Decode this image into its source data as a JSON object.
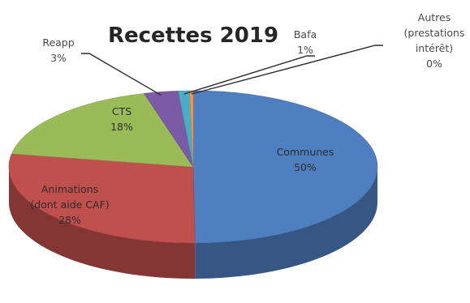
{
  "chart_data": {
    "type": "pie",
    "title": "Recettes 2019",
    "three_d": true,
    "legend": "none",
    "slices": [
      {
        "key": "communes",
        "label_lines": [
          "Communes"
        ],
        "value": 50,
        "pct_label": "50%",
        "color": "#4f7fc0"
      },
      {
        "key": "animations",
        "label_lines": [
          "Animations",
          "(dont aide CAF)"
        ],
        "value": 28,
        "pct_label": "28%",
        "color": "#c0504d"
      },
      {
        "key": "cts",
        "label_lines": [
          "CTS"
        ],
        "value": 18,
        "pct_label": "18%",
        "color": "#9bbb59"
      },
      {
        "key": "reapp",
        "label_lines": [
          "Reapp"
        ],
        "value": 3,
        "pct_label": "3%",
        "color": "#7b5ba6"
      },
      {
        "key": "bafa",
        "label_lines": [
          "Bafa"
        ],
        "value": 1,
        "pct_label": "1%",
        "color": "#4bacc6"
      },
      {
        "key": "autres",
        "label_lines": [
          "Autres",
          "(prestations",
          "intérêt)"
        ],
        "value": 0.3,
        "pct_label": "0%",
        "color": "#f79646"
      }
    ]
  }
}
